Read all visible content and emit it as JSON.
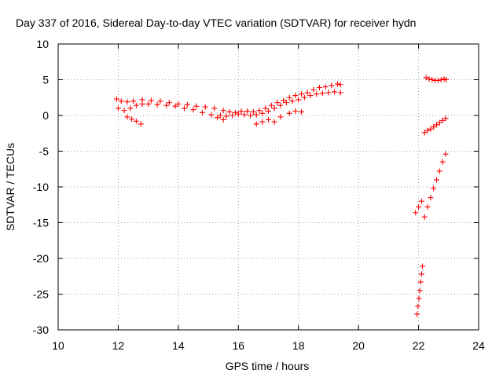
{
  "chart_data": {
    "type": "scatter",
    "title": "Day 337 of 2016, Sidereal Day-to-day VTEC variation (SDTVAR) for receiver hydn",
    "xlabel": "GPS time / hours",
    "ylabel": "SDTVAR / TECUs",
    "xlim": [
      10,
      24
    ],
    "ylim": [
      -30,
      10
    ],
    "xticks": [
      10,
      12,
      14,
      16,
      18,
      20,
      22,
      24
    ],
    "yticks": [
      -30,
      -25,
      -20,
      -15,
      -10,
      -5,
      0,
      5,
      10
    ],
    "grid": true,
    "marker": "plus",
    "color": "#ff0000",
    "series": [
      {
        "x": [
          11.95,
          12.1,
          12.3,
          12.5,
          12.8,
          13.1,
          13.4,
          13.7,
          14.0,
          14.3,
          14.6,
          14.9,
          15.2,
          15.5,
          15.7,
          15.9,
          16.1,
          16.3,
          16.5,
          16.7,
          16.9,
          17.1,
          17.3,
          17.5,
          17.7,
          17.9,
          18.1,
          18.3,
          18.5,
          18.7,
          18.9,
          19.1,
          19.3,
          19.4
        ],
        "y": [
          2.3,
          2.0,
          1.9,
          2.0,
          2.2,
          2.1,
          2.0,
          1.8,
          1.6,
          1.5,
          1.3,
          1.2,
          1.0,
          0.7,
          0.5,
          0.4,
          0.6,
          0.6,
          0.5,
          0.7,
          1.0,
          1.4,
          1.8,
          2.1,
          2.5,
          2.8,
          3.0,
          3.2,
          3.6,
          3.9,
          4.0,
          4.2,
          4.4,
          4.3
        ]
      },
      {
        "x": [
          12.0,
          12.2,
          12.4,
          12.6,
          12.8,
          13.0,
          13.3,
          13.6,
          13.9,
          14.2,
          14.5,
          14.8,
          15.1,
          15.4,
          15.6,
          15.8,
          16.0,
          16.2,
          16.4,
          16.6,
          16.8,
          17.0,
          17.2,
          17.4,
          17.6,
          17.8,
          18.0,
          18.2,
          18.4,
          18.6,
          18.8,
          19.0,
          19.2,
          19.4
        ],
        "y": [
          1.0,
          0.7,
          1.0,
          1.4,
          1.6,
          1.6,
          1.5,
          1.4,
          1.3,
          1.0,
          0.8,
          0.4,
          0.1,
          0.0,
          -0.1,
          0.0,
          0.2,
          0.1,
          0.0,
          0.1,
          0.3,
          0.6,
          1.0,
          1.4,
          1.8,
          2.0,
          2.2,
          2.5,
          2.8,
          3.0,
          3.1,
          3.2,
          3.3,
          3.2
        ]
      },
      {
        "x": [
          12.3,
          12.45,
          12.6,
          12.75,
          15.3,
          15.5,
          16.6,
          16.8,
          17.0,
          17.2,
          17.4,
          17.7,
          17.9,
          18.1
        ],
        "y": [
          -0.2,
          -0.5,
          -0.8,
          -1.2,
          -0.3,
          -0.6,
          -1.2,
          -0.9,
          -0.6,
          -0.9,
          -0.2,
          0.3,
          0.6,
          0.5
        ]
      },
      {
        "x": [
          22.25,
          22.35,
          22.45,
          22.55,
          22.65,
          22.75,
          22.85,
          22.92
        ],
        "y": [
          5.3,
          5.1,
          5.0,
          4.9,
          4.9,
          5.0,
          5.1,
          5.0
        ]
      },
      {
        "x": [
          22.2,
          22.3,
          22.4,
          22.5,
          22.6,
          22.7,
          22.8,
          22.9
        ],
        "y": [
          -2.4,
          -2.1,
          -1.9,
          -1.6,
          -1.3,
          -1.0,
          -0.7,
          -0.4
        ]
      },
      {
        "x": [
          22.2,
          22.3,
          22.4,
          22.5,
          22.6,
          22.7,
          22.8,
          22.9
        ],
        "y": [
          -14.2,
          -12.8,
          -11.5,
          -10.2,
          -9.0,
          -7.8,
          -6.5,
          -5.4
        ]
      },
      {
        "x": [
          21.9,
          22.0,
          22.1
        ],
        "y": [
          -13.6,
          -12.8,
          -12.0
        ]
      },
      {
        "x": [
          21.95,
          21.98,
          22.01,
          22.04,
          22.07,
          22.1,
          22.13
        ],
        "y": [
          -27.8,
          -26.7,
          -25.6,
          -24.5,
          -23.3,
          -22.2,
          -21.1
        ]
      }
    ]
  }
}
